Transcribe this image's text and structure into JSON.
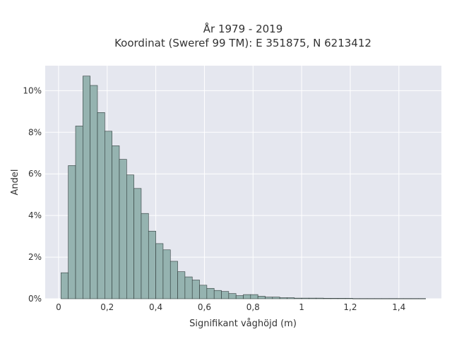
{
  "chart_data": {
    "type": "bar",
    "title_lines": [
      "År 1979 - 2019",
      "Koordinat (Sweref 99 TM): E 351875, N 6213412"
    ],
    "xlabel": "Signifikant våghöjd (m)",
    "ylabel": "Andel",
    "xlim": [
      -0.055,
      1.575
    ],
    "ylim": [
      0,
      11.2
    ],
    "x_ticks": [
      0,
      0.2,
      0.4,
      0.6,
      0.8,
      1.0,
      1.2,
      1.4
    ],
    "x_tick_labels": [
      "0",
      "0,2",
      "0,4",
      "0,6",
      "0,8",
      "1",
      "1,2",
      "1,4"
    ],
    "y_ticks": [
      0,
      2,
      4,
      6,
      8,
      10
    ],
    "y_tick_labels": [
      "0%",
      "2%",
      "4%",
      "6%",
      "8%",
      "10%"
    ],
    "bin_width": 0.03,
    "bin_start": 0.01,
    "values": [
      1.25,
      6.4,
      8.3,
      10.7,
      10.25,
      8.95,
      8.05,
      7.35,
      6.7,
      5.95,
      5.3,
      4.1,
      3.25,
      2.65,
      2.35,
      1.8,
      1.3,
      1.05,
      0.9,
      0.65,
      0.5,
      0.4,
      0.35,
      0.25,
      0.15,
      0.2,
      0.2,
      0.12,
      0.08,
      0.08,
      0.05,
      0.05,
      0.03,
      0.03,
      0.03,
      0.03,
      0.02,
      0.02,
      0.02,
      0.02,
      0.01,
      0.01,
      0.01,
      0.01,
      0.01,
      0.01,
      0.01,
      0.01,
      0.01,
      0.01
    ],
    "grid": true,
    "colors": {
      "bar_fill": "#95b3b0",
      "bar_edge": "#2f3b3a",
      "plot_bg": "#e5e7ef",
      "grid": "#ffffff"
    }
  }
}
